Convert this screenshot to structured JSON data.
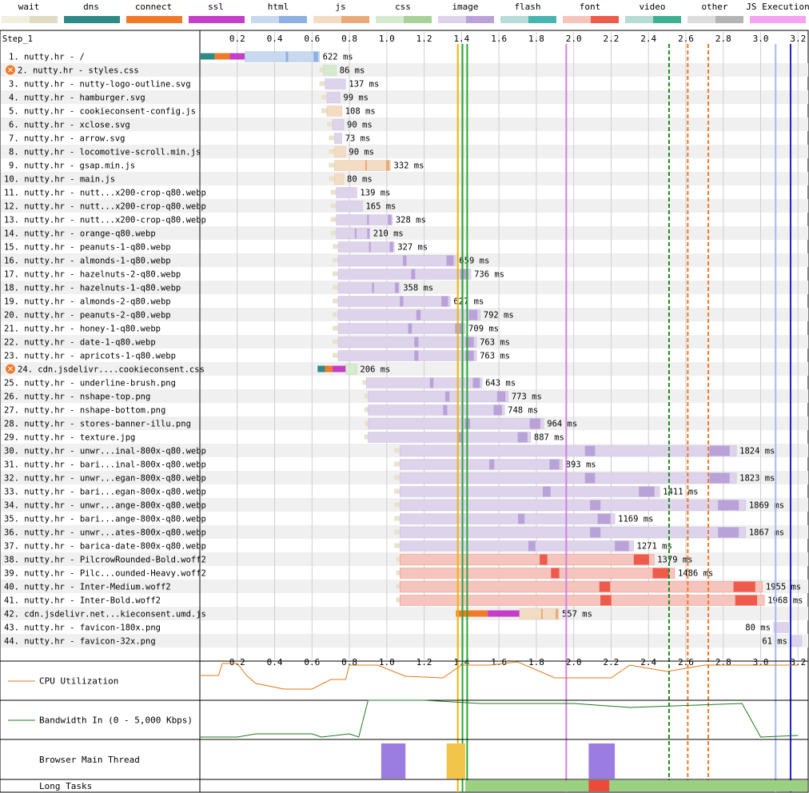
{
  "legend": [
    {
      "label": "wait",
      "left": "#f1efe0",
      "right": "#e0dcc4",
      "id": "wait"
    },
    {
      "label": "dns",
      "left": "#2f8a87",
      "right": "#2f8a87",
      "id": "dns"
    },
    {
      "label": "connect",
      "left": "#f07a2a",
      "right": "#f07a2a",
      "id": "connect"
    },
    {
      "label": "ssl",
      "left": "#c43ec8",
      "right": "#c43ec8",
      "id": "ssl"
    },
    {
      "label": "html",
      "left": "#c8d8ee",
      "right": "#8fb0e2",
      "id": "html"
    },
    {
      "label": "js",
      "left": "#f3dcc4",
      "right": "#e8aa78",
      "id": "js"
    },
    {
      "label": "css",
      "left": "#d6ead0",
      "right": "#a8d29a",
      "id": "css"
    },
    {
      "label": "image",
      "left": "#ddd3ea",
      "right": "#b9a2d8",
      "id": "image"
    },
    {
      "label": "flash",
      "left": "#b8dcd8",
      "right": "#45b5ae",
      "id": "flash"
    },
    {
      "label": "font",
      "left": "#f5c4bc",
      "right": "#ee5a4c",
      "id": "font"
    },
    {
      "label": "video",
      "left": "#b6ddd3",
      "right": "#3cb092",
      "id": "video"
    },
    {
      "label": "other",
      "left": "#dcdcdc",
      "right": "#b4b4b4",
      "id": "other"
    },
    {
      "label": "JS Execution",
      "left": "#f5a3f2",
      "right": "#f5a3f2",
      "id": "jsexec"
    }
  ],
  "step_label": "Step_1",
  "chart_data": {
    "type": "waterfall",
    "x_unit": "s",
    "xlim": [
      0,
      3.25
    ],
    "ticks": [
      "0.2",
      "0.4",
      "0.6",
      "0.8",
      "1.0",
      "1.2",
      "1.4",
      "1.6",
      "1.8",
      "2.0",
      "2.2",
      "2.4",
      "2.6",
      "2.8",
      "3.0",
      "3.2"
    ],
    "markers": [
      {
        "t": 1.38,
        "color": "#f2b400",
        "dash": false
      },
      {
        "t": 1.405,
        "color": "#28a832",
        "dash": false
      },
      {
        "t": 1.43,
        "color": "#28a832",
        "dash": false
      },
      {
        "t": 1.96,
        "color": "#d47fe0",
        "dash": false
      },
      {
        "t": 2.51,
        "color": "#1d8a1d",
        "dash": true
      },
      {
        "t": 2.61,
        "color": "#f07a2a",
        "dash": true
      },
      {
        "t": 2.72,
        "color": "#f07a2a",
        "dash": true
      },
      {
        "t": 3.08,
        "color": "#a9b6f5",
        "dash": false
      },
      {
        "t": 3.16,
        "color": "#1c22c8",
        "dash": false
      }
    ],
    "requests": [
      {
        "n": "1.",
        "label": "nutty.hr - /",
        "type": "html",
        "start": 0.0,
        "dns": 0.08,
        "connect": 0.08,
        "ssl": 0.08,
        "wait": 0.0,
        "dl": 0.4,
        "ms": "622 ms",
        "warn": false
      },
      {
        "n": "2.",
        "label": "nutty.hr - styles.css",
        "type": "css",
        "start": 0.64,
        "wait": 0.02,
        "dl": 0.07,
        "ms": "86 ms",
        "warn": true
      },
      {
        "n": "3.",
        "label": "nutty.hr - nutty-logo-outline.svg",
        "type": "image",
        "start": 0.64,
        "wait": 0.03,
        "dl": 0.11,
        "ms": "137 ms",
        "warn": false
      },
      {
        "n": "4.",
        "label": "nutty.hr - hamburger.svg",
        "type": "image",
        "start": 0.65,
        "wait": 0.03,
        "dl": 0.07,
        "ms": "99 ms",
        "warn": false
      },
      {
        "n": "5.",
        "label": "nutty.hr - cookieconsent-config.js",
        "type": "js",
        "start": 0.65,
        "wait": 0.03,
        "dl": 0.08,
        "ms": "108 ms",
        "warn": false
      },
      {
        "n": "6.",
        "label": "nutty.hr - xclose.svg",
        "type": "image",
        "start": 0.68,
        "wait": 0.03,
        "dl": 0.06,
        "ms": "90 ms",
        "warn": false
      },
      {
        "n": "7.",
        "label": "nutty.hr - arrow.svg",
        "type": "image",
        "start": 0.69,
        "wait": 0.03,
        "dl": 0.04,
        "ms": "73 ms",
        "warn": false
      },
      {
        "n": "8.",
        "label": "nutty.hr - locomotive-scroll.min.js",
        "type": "js",
        "start": 0.69,
        "wait": 0.03,
        "dl": 0.06,
        "ms": "90 ms",
        "warn": false
      },
      {
        "n": "9.",
        "label": "nutty.hr - gsap.min.js",
        "type": "js",
        "start": 0.69,
        "wait": 0.03,
        "dl": 0.3,
        "ms": "332 ms",
        "warn": false
      },
      {
        "n": "10.",
        "label": "nutty.hr - main.js",
        "type": "js",
        "start": 0.69,
        "wait": 0.03,
        "dl": 0.05,
        "ms": "80 ms",
        "warn": false
      },
      {
        "n": "11.",
        "label": "nutty.hr - nutt...x200-crop-q80.webp",
        "type": "image",
        "start": 0.7,
        "wait": 0.03,
        "dl": 0.11,
        "ms": "139 ms",
        "warn": false
      },
      {
        "n": "12.",
        "label": "nutty.hr - nutt...x200-crop-q80.webp",
        "type": "image",
        "start": 0.7,
        "wait": 0.03,
        "dl": 0.14,
        "ms": "165 ms",
        "warn": false
      },
      {
        "n": "13.",
        "label": "nutty.hr - nutt...x200-crop-q80.webp",
        "type": "image",
        "start": 0.7,
        "wait": 0.03,
        "dl": 0.3,
        "ms": "328 ms",
        "warn": false
      },
      {
        "n": "14.",
        "label": "nutty.hr - orange-q80.webp",
        "type": "image",
        "start": 0.7,
        "wait": 0.03,
        "dl": 0.18,
        "ms": "210 ms",
        "warn": false
      },
      {
        "n": "15.",
        "label": "nutty.hr - peanuts-1-q80.webp",
        "type": "image",
        "start": 0.71,
        "wait": 0.03,
        "dl": 0.3,
        "ms": "327 ms",
        "warn": false
      },
      {
        "n": "16.",
        "label": "nutty.hr - almonds-1-q80.webp",
        "type": "image",
        "start": 0.71,
        "wait": 0.03,
        "dl": 0.63,
        "ms": "659 ms",
        "warn": false
      },
      {
        "n": "17.",
        "label": "nutty.hr - hazelnuts-2-q80.webp",
        "type": "image",
        "start": 0.71,
        "wait": 0.03,
        "dl": 0.71,
        "ms": "736 ms",
        "warn": false
      },
      {
        "n": "18.",
        "label": "nutty.hr - hazelnuts-1-q80.webp",
        "type": "image",
        "start": 0.71,
        "wait": 0.03,
        "dl": 0.33,
        "ms": "358 ms",
        "warn": false
      },
      {
        "n": "19.",
        "label": "nutty.hr - almonds-2-q80.webp",
        "type": "image",
        "start": 0.71,
        "wait": 0.03,
        "dl": 0.6,
        "ms": "627 ms",
        "warn": false
      },
      {
        "n": "20.",
        "label": "nutty.hr - peanuts-2-q80.webp",
        "type": "image",
        "start": 0.71,
        "wait": 0.03,
        "dl": 0.76,
        "ms": "792 ms",
        "warn": false
      },
      {
        "n": "21.",
        "label": "nutty.hr - honey-1-q80.webp",
        "type": "image",
        "start": 0.71,
        "wait": 0.03,
        "dl": 0.68,
        "ms": "709 ms",
        "warn": false
      },
      {
        "n": "22.",
        "label": "nutty.hr - date-1-q80.webp",
        "type": "image",
        "start": 0.71,
        "wait": 0.03,
        "dl": 0.74,
        "ms": "763 ms",
        "warn": false
      },
      {
        "n": "23.",
        "label": "nutty.hr - apricots-1-q80.webp",
        "type": "image",
        "start": 0.71,
        "wait": 0.03,
        "dl": 0.74,
        "ms": "763 ms",
        "warn": false
      },
      {
        "n": "24.",
        "label": "cdn.jsdelivr....cookieconsent.css",
        "type": "css",
        "start": 0.63,
        "dns": 0.04,
        "connect": 0.04,
        "ssl": 0.07,
        "wait": 0.0,
        "dl": 0.06,
        "ms": "206 ms",
        "warn": true
      },
      {
        "n": "25.",
        "label": "nutty.hr - underline-brush.png",
        "type": "image",
        "start": 0.87,
        "wait": 0.02,
        "dl": 0.62,
        "ms": "643 ms",
        "warn": false
      },
      {
        "n": "26.",
        "label": "nutty.hr - nshape-top.png",
        "type": "image",
        "start": 0.88,
        "wait": 0.02,
        "dl": 0.75,
        "ms": "773 ms",
        "warn": false
      },
      {
        "n": "27.",
        "label": "nutty.hr - nshape-bottom.png",
        "type": "image",
        "start": 0.88,
        "wait": 0.02,
        "dl": 0.73,
        "ms": "748 ms",
        "warn": false
      },
      {
        "n": "28.",
        "label": "nutty.hr - stores-banner-illu.png",
        "type": "image",
        "start": 0.88,
        "wait": 0.02,
        "dl": 0.94,
        "ms": "964 ms",
        "warn": false
      },
      {
        "n": "29.",
        "label": "nutty.hr - texture.jpg",
        "type": "image",
        "start": 0.88,
        "wait": 0.02,
        "dl": 0.87,
        "ms": "887 ms",
        "warn": false
      },
      {
        "n": "30.",
        "label": "nutty.hr - unwr...inal-800x-q80.webp",
        "type": "image",
        "start": 1.04,
        "wait": 0.03,
        "dl": 1.8,
        "ms": "1824 ms",
        "warn": false
      },
      {
        "n": "31.",
        "label": "nutty.hr - bari...inal-800x-q80.webp",
        "type": "image",
        "start": 1.04,
        "wait": 0.03,
        "dl": 0.87,
        "ms": "893 ms",
        "warn": false
      },
      {
        "n": "32.",
        "label": "nutty.hr - unwr...egan-800x-q80.webp",
        "type": "image",
        "start": 1.04,
        "wait": 0.03,
        "dl": 1.8,
        "ms": "1823 ms",
        "warn": false
      },
      {
        "n": "33.",
        "label": "nutty.hr - bari...egan-800x-q80.webp",
        "type": "image",
        "start": 1.04,
        "wait": 0.03,
        "dl": 1.39,
        "ms": "1411 ms",
        "warn": false
      },
      {
        "n": "34.",
        "label": "nutty.hr - unwr...ange-800x-q80.webp",
        "type": "image",
        "start": 1.04,
        "wait": 0.03,
        "dl": 1.85,
        "ms": "1869 ms",
        "warn": false
      },
      {
        "n": "35.",
        "label": "nutty.hr - bari...ange-800x-q80.webp",
        "type": "image",
        "start": 1.04,
        "wait": 0.03,
        "dl": 1.15,
        "ms": "1169 ms",
        "warn": false
      },
      {
        "n": "36.",
        "label": "nutty.hr - unwr...ates-800x-q80.webp",
        "type": "image",
        "start": 1.04,
        "wait": 0.03,
        "dl": 1.85,
        "ms": "1867 ms",
        "warn": false
      },
      {
        "n": "37.",
        "label": "nutty.hr - barica-date-800x-q80.webp",
        "type": "image",
        "start": 1.04,
        "wait": 0.03,
        "dl": 1.25,
        "ms": "1271 ms",
        "warn": false
      },
      {
        "n": "38.",
        "label": "nutty.hr - PilcrowRounded-Bold.woff2",
        "type": "font",
        "start": 1.05,
        "wait": 0.02,
        "dl": 1.36,
        "ms": "1379 ms",
        "warn": false
      },
      {
        "n": "39.",
        "label": "nutty.hr - Pilc...ounded-Heavy.woff2",
        "type": "font",
        "start": 1.05,
        "wait": 0.02,
        "dl": 1.47,
        "ms": "1486 ms",
        "warn": false
      },
      {
        "n": "40.",
        "label": "nutty.hr - Inter-Medium.woff2",
        "type": "font",
        "start": 1.05,
        "wait": 0.02,
        "dl": 1.94,
        "ms": "1955 ms",
        "warn": false
      },
      {
        "n": "41.",
        "label": "nutty.hr - Inter-Bold.woff2",
        "type": "font",
        "start": 1.05,
        "wait": 0.02,
        "dl": 1.95,
        "ms": "1968 ms",
        "warn": false
      },
      {
        "n": "42.",
        "label": "cdn.jsdelivr.net...kieconsent.umd.js",
        "type": "js",
        "start": 1.37,
        "dns": 0.0,
        "connect": 0.17,
        "ssl": 0.17,
        "wait": 0.0,
        "dl": 0.21,
        "ms": "557 ms",
        "warn": false
      },
      {
        "n": "43.",
        "label": "nutty.hr - favicon-180x.png",
        "type": "image",
        "start": 3.07,
        "wait": 0.0,
        "dl": 0.08,
        "ms": "80 ms",
        "warn": false
      },
      {
        "n": "44.",
        "label": "nutty.hr - favicon-32x.png",
        "type": "image",
        "start": 3.16,
        "wait": 0.0,
        "dl": 0.06,
        "ms": "61 ms",
        "warn": false
      }
    ],
    "cpu_label": "CPU Utilization",
    "bandwidth_label": "Bandwidth In (0 - 5,000 Kbps)",
    "main_thread_label": "Browser Main Thread",
    "long_tasks_label": "Long Tasks"
  }
}
